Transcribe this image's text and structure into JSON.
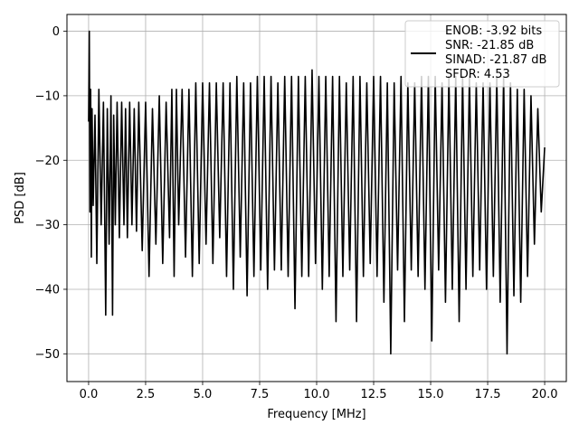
{
  "chart_data": {
    "type": "line",
    "xlabel": "Frequency [MHz]",
    "ylabel": "PSD [dB]",
    "xlim": [
      -0.95,
      20.95
    ],
    "ylim": [
      -54.3,
      2.6
    ],
    "x_ticks": [
      0.0,
      2.5,
      5.0,
      7.5,
      10.0,
      12.5,
      15.0,
      17.5,
      20.0
    ],
    "x_tick_labels": [
      "0.0",
      "2.5",
      "5.0",
      "7.5",
      "10.0",
      "12.5",
      "15.0",
      "17.5",
      "20.0"
    ],
    "y_ticks": [
      0,
      -10,
      -20,
      -30,
      -40,
      -50
    ],
    "y_tick_labels": [
      "0",
      "−10",
      "−20",
      "−30",
      "−40",
      "−50"
    ],
    "grid": true,
    "legend_position": "top-right",
    "legend_lines": [
      "ENOB: -3.92 bits",
      "SNR: -21.85 dB",
      "SINAD: -21.87 dB",
      "SFDR: 4.53"
    ],
    "line_color": "#000000",
    "series": [
      {
        "x": [
          0.0,
          0.03,
          0.06,
          0.09,
          0.12,
          0.15,
          0.2,
          0.28,
          0.36,
          0.45,
          0.55,
          0.65,
          0.7,
          0.75,
          0.82,
          0.9,
          0.98,
          1.05,
          1.1,
          1.17,
          1.25,
          1.35,
          1.45,
          1.55,
          1.62,
          1.7,
          1.8,
          1.9,
          2.0,
          2.1,
          2.2,
          2.35,
          2.5,
          2.65,
          2.8,
          2.95,
          3.1,
          3.25,
          3.4,
          3.55,
          3.65,
          3.75,
          3.85,
          3.95,
          4.1,
          4.25,
          4.4,
          4.55,
          4.7,
          4.85,
          5.0,
          5.15,
          5.3,
          5.45,
          5.6,
          5.75,
          5.9,
          6.05,
          6.2,
          6.35,
          6.5,
          6.65,
          6.8,
          6.95,
          7.1,
          7.25,
          7.4,
          7.55,
          7.7,
          7.85,
          8.0,
          8.15,
          8.3,
          8.45,
          8.6,
          8.75,
          8.9,
          9.05,
          9.2,
          9.35,
          9.5,
          9.65,
          9.8,
          9.95,
          10.1,
          10.25,
          10.4,
          10.55,
          10.7,
          10.85,
          11.0,
          11.15,
          11.3,
          11.45,
          11.6,
          11.75,
          11.9,
          12.05,
          12.2,
          12.35,
          12.5,
          12.65,
          12.8,
          12.95,
          13.1,
          13.25,
          13.4,
          13.55,
          13.7,
          13.85,
          14.0,
          14.15,
          14.3,
          14.45,
          14.6,
          14.75,
          14.9,
          15.05,
          15.2,
          15.35,
          15.5,
          15.65,
          15.8,
          15.95,
          16.1,
          16.25,
          16.4,
          16.55,
          16.7,
          16.85,
          17.0,
          17.15,
          17.3,
          17.45,
          17.6,
          17.75,
          17.9,
          18.05,
          18.2,
          18.35,
          18.5,
          18.65,
          18.8,
          18.95,
          19.1,
          19.25,
          19.4,
          19.55,
          19.7,
          19.85,
          20.0
        ],
        "y": [
          -14,
          0,
          -28,
          -9,
          -35,
          -12,
          -27,
          -13,
          -36,
          -9,
          -30,
          -11,
          -27,
          -44,
          -12,
          -33,
          -10,
          -44,
          -13,
          -30,
          -11,
          -32,
          -11,
          -30,
          -12,
          -32,
          -11,
          -30,
          -12,
          -31,
          -11,
          -34,
          -11,
          -38,
          -12,
          -33,
          -10,
          -36,
          -11,
          -32,
          -9,
          -38,
          -9,
          -30,
          -9,
          -35,
          -9,
          -38,
          -8,
          -36,
          -8,
          -33,
          -8,
          -36,
          -8,
          -32,
          -8,
          -38,
          -8,
          -40,
          -7,
          -35,
          -8,
          -41,
          -8,
          -38,
          -7,
          -37,
          -7,
          -40,
          -7,
          -37,
          -8,
          -37,
          -7,
          -38,
          -7,
          -43,
          -7,
          -38,
          -7,
          -38,
          -6,
          -36,
          -7,
          -40,
          -7,
          -38,
          -7,
          -45,
          -7,
          -38,
          -8,
          -37,
          -7,
          -45,
          -7,
          -38,
          -8,
          -36,
          -7,
          -38,
          -7,
          -42,
          -8,
          -50,
          -8,
          -37,
          -7,
          -45,
          -8,
          -37,
          -8,
          -38,
          -7,
          -40,
          -7,
          -48,
          -7,
          -37,
          -8,
          -42,
          -7,
          -40,
          -7,
          -45,
          -7,
          -40,
          -7,
          -38,
          -8,
          -37,
          -8,
          -40,
          -8,
          -38,
          -7,
          -42,
          -7,
          -50,
          -8,
          -41,
          -9,
          -42,
          -9,
          -38,
          -10,
          -33,
          -12,
          -28,
          -18
        ]
      }
    ]
  }
}
